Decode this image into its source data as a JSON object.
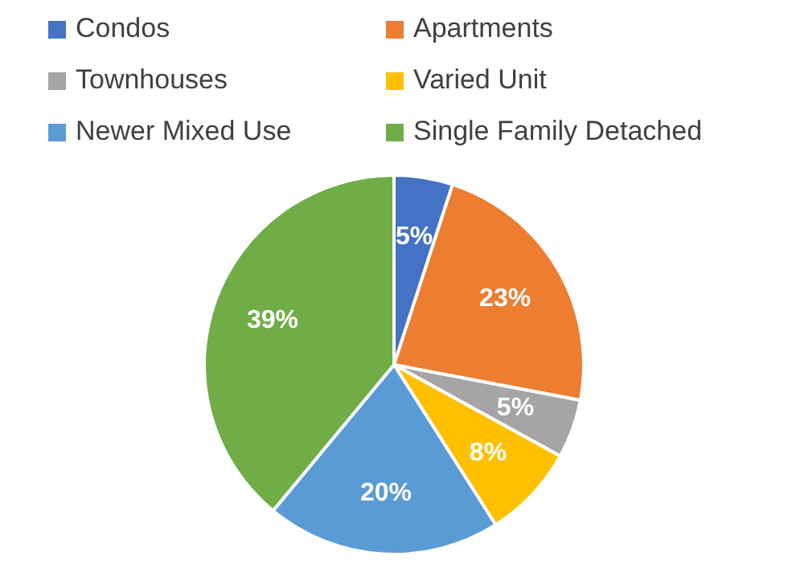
{
  "chart_data": {
    "type": "pie",
    "categories": [
      "Condos",
      "Apartments",
      "Townhouses",
      "Varied Unit",
      "Newer Mixed Use",
      "Single Family Detached"
    ],
    "values": [
      5,
      23,
      5,
      8,
      20,
      39
    ],
    "colors": [
      "#4472c4",
      "#ed7d31",
      "#a5a5a5",
      "#ffc000",
      "#5b9bd5",
      "#70ad47"
    ],
    "value_labels": [
      "5%",
      "23%",
      "5%",
      "8%",
      "20%",
      "39%"
    ],
    "legend": "top"
  }
}
